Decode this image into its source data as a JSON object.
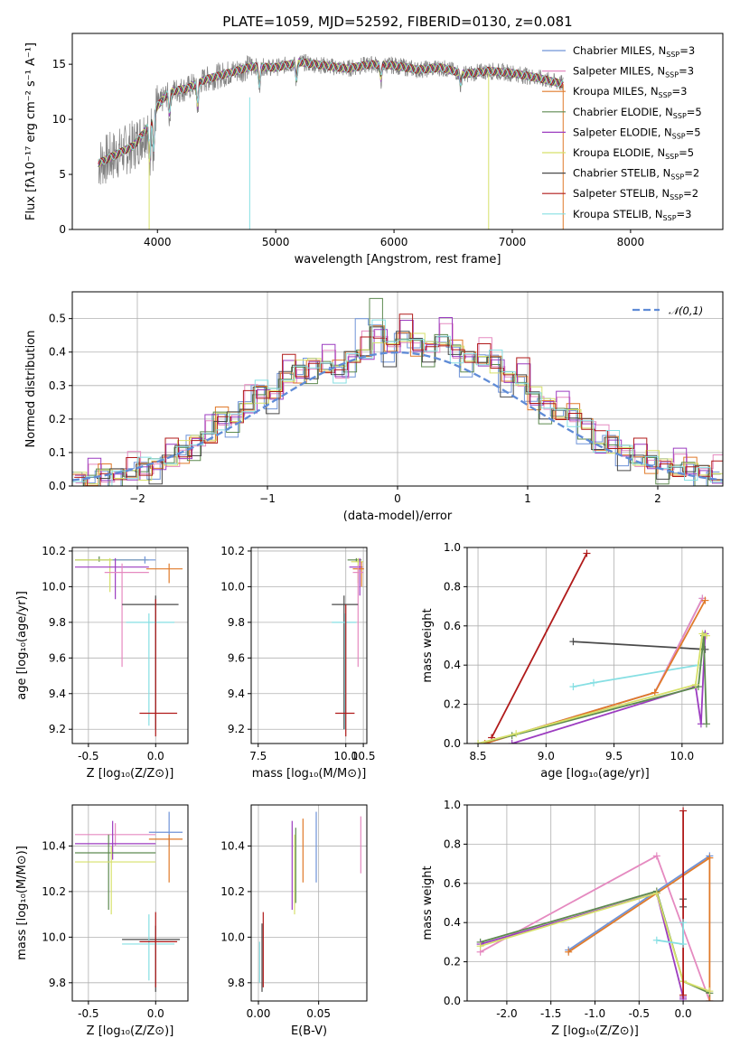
{
  "page_title": "PLATE=1059, MJD=52592, FIBERID=0130, z=0.081",
  "models": [
    {
      "name": "Chabrier MILES",
      "nssp": "3",
      "color": "#6f93d8"
    },
    {
      "name": "Salpeter MILES",
      "nssp": "3",
      "color": "#e58ac0"
    },
    {
      "name": "Kroupa MILES",
      "nssp": "3",
      "color": "#e07a2a"
    },
    {
      "name": "Chabrier ELODIE",
      "nssp": "5",
      "color": "#5e8a50"
    },
    {
      "name": "Salpeter ELODIE",
      "nssp": "5",
      "color": "#9c3cc0"
    },
    {
      "name": "Kroupa ELODIE",
      "nssp": "5",
      "color": "#d6e06a"
    },
    {
      "name": "Chabrier STELIB",
      "nssp": "2",
      "color": "#4a4a4a"
    },
    {
      "name": "Salpeter STELIB",
      "nssp": "2",
      "color": "#b01a1a"
    },
    {
      "name": "Kroupa STELIB",
      "nssp": "3",
      "color": "#86dfe3"
    }
  ],
  "legend_nssp_prefix": "N",
  "legend_nssp_sub": "SSP",
  "chart_data": [
    {
      "id": "spectrum",
      "type": "line",
      "xlabel": "wavelength [Angstrom, rest frame]",
      "ylabel": "Flux [fλ10⁻¹⁷ erg cm⁻² s⁻¹ A⁻¹]",
      "xlim": [
        3280,
        8780
      ],
      "ylim": [
        0,
        17.8
      ],
      "xticks": [
        4000,
        5000,
        6000,
        7000,
        8000
      ],
      "yticks": [
        0,
        5,
        10,
        15
      ],
      "legend_position": "right",
      "grid": false,
      "continuum": [
        [
          3500,
          6.0
        ],
        [
          3650,
          6.8
        ],
        [
          3800,
          7.6
        ],
        [
          3900,
          9.0
        ],
        [
          4000,
          11.2
        ],
        [
          4100,
          12.5
        ],
        [
          4250,
          12.8
        ],
        [
          4400,
          13.6
        ],
        [
          4600,
          14.2
        ],
        [
          4800,
          14.8
        ],
        [
          5000,
          14.7
        ],
        [
          5200,
          15.2
        ],
        [
          5400,
          14.9
        ],
        [
          5600,
          14.6
        ],
        [
          5800,
          15.0
        ],
        [
          6000,
          14.9
        ],
        [
          6200,
          14.5
        ],
        [
          6400,
          14.7
        ],
        [
          6600,
          14.1
        ],
        [
          6800,
          14.4
        ],
        [
          7000,
          14.2
        ],
        [
          7200,
          13.8
        ],
        [
          7430,
          13.2
        ]
      ],
      "dips": [
        [
          3934,
          4.5
        ],
        [
          3968,
          4.0
        ],
        [
          4102,
          2.5
        ],
        [
          4340,
          2.5
        ],
        [
          4861,
          2.0
        ],
        [
          5175,
          1.8
        ],
        [
          5890,
          1.5
        ],
        [
          6563,
          1.2
        ]
      ]
    },
    {
      "id": "residuals",
      "type": "line",
      "xlabel": "(data-model)/error",
      "ylabel": "Normed distribution",
      "xlim": [
        -2.5,
        2.5
      ],
      "ylim": [
        0,
        0.58
      ],
      "xticks": [
        -2,
        -1,
        0,
        1,
        2
      ],
      "yticks": [
        0,
        0.1,
        0.2,
        0.3,
        0.4,
        0.5
      ],
      "grid": true,
      "gaussian_label": "𝒩(0,1)",
      "gaussian": {
        "mean": 0,
        "sigma": 1
      },
      "bin_width": 0.1,
      "hist_bins": [
        -2.5,
        -2.4,
        -2.3,
        -2.2,
        -2.1,
        -2.0,
        -1.9,
        -1.8,
        -1.7,
        -1.6,
        -1.5,
        -1.4,
        -1.3,
        -1.2,
        -1.1,
        -1.0,
        -0.9,
        -0.8,
        -0.7,
        -0.6,
        -0.5,
        -0.4,
        -0.3,
        -0.2,
        -0.1,
        0.0,
        0.1,
        0.2,
        0.3,
        0.4,
        0.5,
        0.6,
        0.7,
        0.8,
        0.9,
        1.0,
        1.1,
        1.2,
        1.3,
        1.4,
        1.5,
        1.6,
        1.7,
        1.8,
        1.9,
        2.0,
        2.1,
        2.2,
        2.3,
        2.4
      ],
      "hist_values": [
        0.02,
        0.02,
        0.03,
        0.03,
        0.04,
        0.05,
        0.06,
        0.08,
        0.1,
        0.13,
        0.15,
        0.2,
        0.2,
        0.24,
        0.28,
        0.27,
        0.33,
        0.34,
        0.36,
        0.36,
        0.34,
        0.38,
        0.4,
        0.46,
        0.41,
        0.45,
        0.42,
        0.41,
        0.44,
        0.4,
        0.38,
        0.38,
        0.37,
        0.32,
        0.32,
        0.26,
        0.24,
        0.22,
        0.21,
        0.18,
        0.12,
        0.13,
        0.1,
        0.08,
        0.07,
        0.06,
        0.05,
        0.05,
        0.04,
        0.03
      ]
    },
    {
      "id": "age_vs_Z",
      "type": "scatter",
      "xlabel": "Z [log₁₀(Z/Z⊙)]",
      "ylabel": "age  [log₁₀(age/yr)]",
      "xlim": [
        -0.62,
        0.24
      ],
      "ylim": [
        9.12,
        10.22
      ],
      "xticks": [
        -0.5,
        0.0
      ],
      "yticks": [
        9.2,
        9.4,
        9.6,
        9.8,
        10.0,
        10.2
      ],
      "grid": true,
      "points": [
        {
          "x": -0.42,
          "xl": -0.6,
          "xh": -0.06,
          "y": 10.15,
          "yl": 10.14,
          "yh": 10.17,
          "m": 3
        },
        {
          "x": -0.34,
          "xl": -0.6,
          "xh": -0.05,
          "y": 10.15,
          "yl": 9.97,
          "yh": 10.16,
          "m": 5
        },
        {
          "x": -0.08,
          "xl": -0.32,
          "xh": 0.0,
          "y": 10.15,
          "yl": 10.13,
          "yh": 10.17,
          "m": 0
        },
        {
          "x": 0.1,
          "xl": -0.07,
          "xh": 0.2,
          "y": 10.1,
          "yl": 10.02,
          "yh": 10.13,
          "m": 2
        },
        {
          "x": -0.3,
          "xl": -0.6,
          "xh": -0.05,
          "y": 10.11,
          "yl": 9.93,
          "yh": 10.16,
          "m": 4
        },
        {
          "x": -0.25,
          "xl": -0.38,
          "xh": -0.05,
          "y": 10.08,
          "yl": 9.55,
          "yh": 10.13,
          "m": 1
        },
        {
          "x": 0.0,
          "xl": -0.25,
          "xh": 0.17,
          "y": 9.9,
          "yl": 9.2,
          "yh": 9.95,
          "m": 6
        },
        {
          "x": -0.05,
          "xl": -0.22,
          "xh": 0.14,
          "y": 9.8,
          "yl": 9.22,
          "yh": 9.85,
          "m": 8
        },
        {
          "x": 0.0,
          "xl": -0.12,
          "xh": 0.16,
          "y": 9.29,
          "yl": 9.16,
          "yh": 9.93,
          "m": 7
        }
      ]
    },
    {
      "id": "age_vs_mass",
      "type": "scatter",
      "xlabel": "mass [log₁₀(M/M⊙)]",
      "ylabel": "",
      "xlim": [
        7.3,
        10.6
      ],
      "ylim": [
        9.12,
        10.22
      ],
      "xticks": [
        7.5,
        10.0,
        10.5
      ],
      "yticks": [
        9.2,
        9.4,
        9.6,
        9.8,
        10.0,
        10.2
      ],
      "grid": true,
      "points": [
        {
          "x": 10.3,
          "xl": 10.05,
          "xh": 10.45,
          "y": 10.15,
          "yl": 10.14,
          "yh": 10.16,
          "m": 3
        },
        {
          "x": 10.35,
          "xl": 10.15,
          "xh": 10.5,
          "y": 10.14,
          "yl": 10.02,
          "yh": 10.16,
          "m": 5
        },
        {
          "x": 10.4,
          "xl": 10.1,
          "xh": 10.48,
          "y": 10.11,
          "yl": 9.95,
          "yh": 10.16,
          "m": 4
        },
        {
          "x": 10.45,
          "xl": 10.2,
          "xh": 10.52,
          "y": 10.1,
          "yl": 10.0,
          "yh": 10.14,
          "m": 2
        },
        {
          "x": 10.35,
          "xl": 10.2,
          "xh": 10.5,
          "y": 10.08,
          "yl": 9.55,
          "yh": 10.12,
          "m": 1
        },
        {
          "x": 9.95,
          "xl": 9.6,
          "xh": 10.35,
          "y": 9.9,
          "yl": 9.2,
          "yh": 9.95,
          "m": 6
        },
        {
          "x": 9.98,
          "xl": 9.6,
          "xh": 10.3,
          "y": 9.8,
          "yl": 9.2,
          "yh": 9.85,
          "m": 8
        },
        {
          "x": 10.0,
          "xl": 9.7,
          "xh": 10.25,
          "y": 9.29,
          "yl": 9.16,
          "yh": 9.9,
          "m": 7
        }
      ]
    },
    {
      "id": "weight_vs_age",
      "type": "line",
      "xlabel": "age  [log₁₀(age/yr)]",
      "ylabel": "mass weight",
      "xlim": [
        8.42,
        10.3
      ],
      "ylim": [
        0,
        1.0
      ],
      "xticks": [
        8.5,
        9.0,
        9.5,
        10.0
      ],
      "yticks": [
        0.0,
        0.2,
        0.4,
        0.6,
        0.8,
        1.0
      ],
      "grid": true,
      "series": [
        {
          "m": 7,
          "x": [
            8.6,
            9.3
          ],
          "y": [
            0.03,
            0.97
          ]
        },
        {
          "m": 6,
          "x": [
            9.2,
            10.17
          ],
          "y": [
            0.52,
            0.48
          ]
        },
        {
          "m": 8,
          "x": [
            9.2,
            9.35,
            10.12
          ],
          "y": [
            0.29,
            0.31,
            0.4
          ]
        },
        {
          "m": 0,
          "x": [
            8.55,
            9.8,
            10.15
          ],
          "y": [
            0.0,
            0.26,
            0.74
          ]
        },
        {
          "m": 1,
          "x": [
            8.55,
            9.8,
            10.15
          ],
          "y": [
            0.0,
            0.26,
            0.74
          ]
        },
        {
          "m": 2,
          "x": [
            8.55,
            9.8,
            10.17
          ],
          "y": [
            0.0,
            0.26,
            0.73
          ]
        },
        {
          "m": 4,
          "x": [
            8.75,
            10.1,
            10.14,
            10.17
          ],
          "y": [
            0.0,
            0.29,
            0.1,
            0.56
          ]
        },
        {
          "m": 3,
          "x": [
            8.5,
            8.75,
            10.12,
            10.16,
            10.18
          ],
          "y": [
            0.0,
            0.04,
            0.29,
            0.55,
            0.1
          ]
        },
        {
          "m": 5,
          "x": [
            8.5,
            8.78,
            10.1,
            10.15,
            10.18
          ],
          "y": [
            0.0,
            0.05,
            0.3,
            0.56,
            0.55
          ]
        }
      ]
    },
    {
      "id": "mass_vs_Z",
      "type": "scatter",
      "xlabel": "Z [log₁₀(Z/Z⊙)]",
      "ylabel": "mass [log₁₀(M/M⊙)]",
      "xlim": [
        -0.62,
        0.24
      ],
      "ylim": [
        9.72,
        10.58
      ],
      "xticks": [
        -0.5,
        0.0
      ],
      "yticks": [
        9.8,
        10.0,
        10.2,
        10.4
      ],
      "grid": true,
      "points": [
        {
          "x": -0.3,
          "xl": -0.6,
          "xh": 0.0,
          "y": 10.45,
          "yl": 10.4,
          "yh": 10.5,
          "m": 1
        },
        {
          "x": 0.1,
          "xl": -0.05,
          "xh": 0.2,
          "y": 10.46,
          "yl": 10.4,
          "yh": 10.55,
          "m": 0
        },
        {
          "x": 0.1,
          "xl": -0.05,
          "xh": 0.2,
          "y": 10.43,
          "yl": 10.24,
          "yh": 10.45,
          "m": 2
        },
        {
          "x": -0.32,
          "xl": -0.6,
          "xh": 0.0,
          "y": 10.41,
          "yl": 10.34,
          "yh": 10.51,
          "m": 4
        },
        {
          "x": -0.35,
          "xl": -0.6,
          "xh": 0.0,
          "y": 10.37,
          "yl": 10.12,
          "yh": 10.45,
          "m": 3
        },
        {
          "x": -0.33,
          "xl": -0.6,
          "xh": 0.0,
          "y": 10.33,
          "yl": 10.1,
          "yh": 10.4,
          "m": 5
        },
        {
          "x": 0.0,
          "xl": -0.25,
          "xh": 0.18,
          "y": 9.99,
          "yl": 9.76,
          "yh": 10.05,
          "m": 6
        },
        {
          "x": -0.05,
          "xl": -0.25,
          "xh": 0.14,
          "y": 9.97,
          "yl": 9.81,
          "yh": 10.1,
          "m": 8
        },
        {
          "x": 0.0,
          "xl": -0.12,
          "xh": 0.16,
          "y": 9.98,
          "yl": 9.78,
          "yh": 10.11,
          "m": 7
        }
      ]
    },
    {
      "id": "mass_vs_EBV",
      "type": "scatter",
      "xlabel": "E(B-V)",
      "ylabel": "",
      "xlim": [
        -0.006,
        0.09
      ],
      "ylim": [
        9.72,
        10.58
      ],
      "xticks": [
        0.0,
        0.05
      ],
      "yticks": [
        9.8,
        10.0,
        10.2,
        10.4
      ],
      "grid": true,
      "points": [
        {
          "x": 0.085,
          "y": 10.41,
          "yl": 10.28,
          "yh": 10.53,
          "m": 1
        },
        {
          "x": 0.048,
          "y": 10.4,
          "yl": 10.24,
          "yh": 10.55,
          "m": 0
        },
        {
          "x": 0.037,
          "y": 10.38,
          "yl": 10.24,
          "yh": 10.52,
          "m": 2
        },
        {
          "x": 0.03,
          "y": 10.3,
          "yl": 10.1,
          "yh": 10.45,
          "m": 5
        },
        {
          "x": 0.028,
          "y": 10.35,
          "yl": 10.12,
          "yh": 10.51,
          "m": 4
        },
        {
          "x": 0.031,
          "y": 10.32,
          "yl": 10.15,
          "yh": 10.48,
          "m": 3
        },
        {
          "x": 0.003,
          "y": 9.97,
          "yl": 9.76,
          "yh": 10.06,
          "m": 6
        },
        {
          "x": 0.004,
          "y": 9.98,
          "yl": 9.78,
          "yh": 10.11,
          "m": 7
        },
        {
          "x": 0.001,
          "y": 9.92,
          "yl": 9.8,
          "yh": 9.98,
          "m": 8
        }
      ]
    },
    {
      "id": "weight_vs_Z",
      "type": "line",
      "xlabel": "Z [log₁₀(Z/Z⊙)]",
      "ylabel": "mass weight",
      "xlim": [
        -2.45,
        0.45
      ],
      "ylim": [
        0,
        1.0
      ],
      "xticks": [
        -2.0,
        -1.5,
        -1.0,
        -0.5,
        0.0
      ],
      "yticks": [
        0.0,
        0.2,
        0.4,
        0.6,
        0.8,
        1.0
      ],
      "grid": true,
      "series": [
        {
          "m": 1,
          "x": [
            -2.3,
            -0.3,
            0.3
          ],
          "y": [
            0.25,
            0.74,
            0.0
          ]
        },
        {
          "m": 0,
          "x": [
            -1.3,
            0.3
          ],
          "y": [
            0.26,
            0.74
          ]
        },
        {
          "m": 2,
          "x": [
            -1.3,
            0.3,
            0.3
          ],
          "y": [
            0.25,
            0.73,
            0.0
          ]
        },
        {
          "m": 3,
          "x": [
            -2.3,
            -0.3,
            0.0,
            0.3
          ],
          "y": [
            0.3,
            0.56,
            0.1,
            0.04
          ]
        },
        {
          "m": 4,
          "x": [
            -2.3,
            -0.3,
            0.0,
            0.0
          ],
          "y": [
            0.29,
            0.55,
            0.02,
            0.01
          ]
        },
        {
          "m": 5,
          "x": [
            -2.3,
            -0.3,
            0.0,
            0.3
          ],
          "y": [
            0.28,
            0.55,
            0.1,
            0.05
          ]
        },
        {
          "m": 6,
          "x": [
            0.0,
            0.0
          ],
          "y": [
            0.52,
            0.48
          ]
        },
        {
          "m": 7,
          "x": [
            0.0,
            0.0
          ],
          "y": [
            0.03,
            0.97
          ]
        },
        {
          "m": 8,
          "x": [
            -0.3,
            0.0,
            0.0
          ],
          "y": [
            0.31,
            0.29,
            0.4
          ]
        }
      ]
    }
  ]
}
